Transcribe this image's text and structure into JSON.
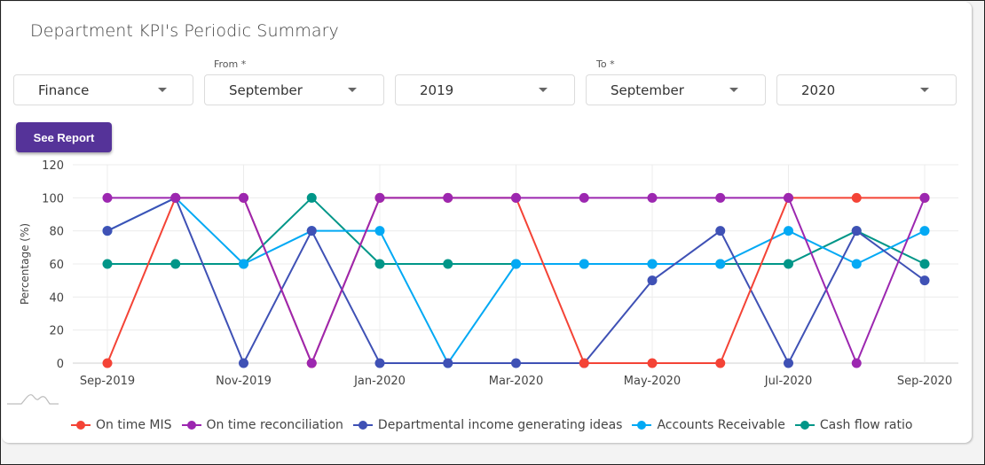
{
  "page": {
    "title": "Department KPI's Periodic Summary"
  },
  "filters": {
    "department": {
      "value": "Finance"
    },
    "from_label": "From *",
    "from_month": {
      "value": "September"
    },
    "from_year": {
      "value": "2019"
    },
    "to_label": "To *",
    "to_month": {
      "value": "September"
    },
    "to_year": {
      "value": "2020"
    }
  },
  "actions": {
    "see_report_label": "See Report",
    "see_report_color": "#553399"
  },
  "chart_data": {
    "type": "line",
    "title": "",
    "xlabel": "",
    "ylabel": "Percentage (%)",
    "ylim": [
      0,
      120
    ],
    "yticks": [
      0,
      20,
      40,
      60,
      80,
      100,
      120
    ],
    "grid": true,
    "legend_position": "bottom",
    "x": [
      "Sep-2019",
      "Oct-2019",
      "Nov-2019",
      "Dec-2019",
      "Jan-2020",
      "Feb-2020",
      "Mar-2020",
      "Apr-2020",
      "May-2020",
      "Jun-2020",
      "Jul-2020",
      "Aug-2020",
      "Sep-2020"
    ],
    "xtick_labels": [
      "Sep-2019",
      "Nov-2019",
      "Jan-2020",
      "Mar-2020",
      "May-2020",
      "Jul-2020",
      "Sep-2020"
    ],
    "series": [
      {
        "name": "On time MIS",
        "color": "#f44336",
        "values": [
          0,
          100,
          100,
          0,
          100,
          100,
          100,
          0,
          0,
          0,
          100,
          100,
          100
        ]
      },
      {
        "name": "On time reconciliation",
        "color": "#9c27b0",
        "values": [
          100,
          100,
          100,
          0,
          100,
          100,
          100,
          100,
          100,
          100,
          100,
          0,
          100
        ]
      },
      {
        "name": "Departmental income generating ideas",
        "color": "#3f51b5",
        "values": [
          80,
          100,
          0,
          80,
          0,
          0,
          0,
          0,
          50,
          80,
          0,
          80,
          50
        ]
      },
      {
        "name": "Accounts Receivable",
        "color": "#03a9f4",
        "values": [
          80,
          100,
          60,
          80,
          80,
          0,
          60,
          60,
          60,
          60,
          80,
          60,
          80
        ]
      },
      {
        "name": "Cash flow ratio",
        "color": "#009688",
        "values": [
          60,
          60,
          60,
          100,
          60,
          60,
          60,
          60,
          60,
          60,
          60,
          80,
          60
        ]
      }
    ]
  },
  "icons": {
    "chart_area_icon": "area-chart-icon",
    "dropdown_caret": "caret-down-icon"
  }
}
